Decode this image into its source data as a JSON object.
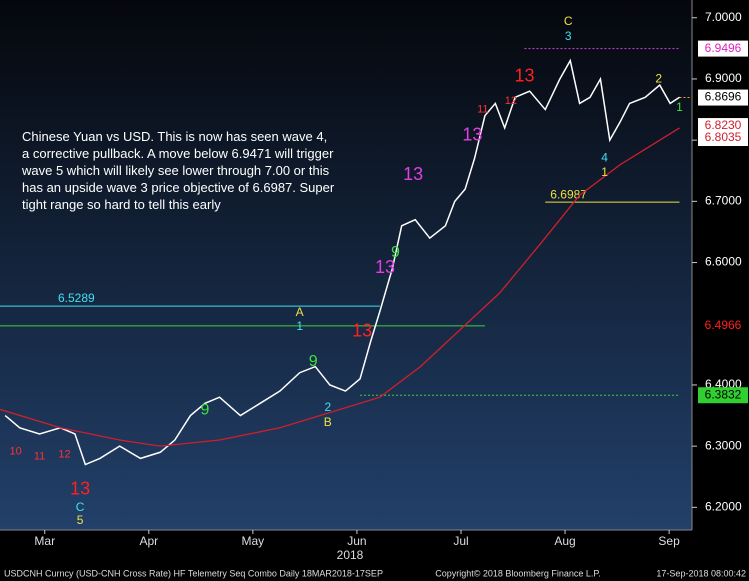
{
  "chart_data": {
    "type": "line",
    "note": "Chinese Yuan vs USD.  This is now has seen wave 4, a corrective pullback.  A move below 6.9471 will trigger wave 5 which will likely see lower through 7.00 or this has an upside wave 3 price objective of 6.6987.  Super tight range so hard to tell this early",
    "x_label": "2018",
    "xlim": [
      -0.43,
      6.22
    ],
    "xticks": [
      {
        "value": 0,
        "label": "Mar"
      },
      {
        "value": 1,
        "label": "Apr"
      },
      {
        "value": 2,
        "label": "May"
      },
      {
        "value": 3,
        "label": "Jun"
      },
      {
        "value": 4,
        "label": "Jul"
      },
      {
        "value": 5,
        "label": "Aug"
      },
      {
        "value": 6,
        "label": "Sep"
      }
    ],
    "ylim": [
      6.163,
      7.029
    ],
    "yticks": [
      {
        "value": 6.2,
        "label": "6.2000"
      },
      {
        "value": 6.3,
        "label": "6.3000"
      },
      {
        "value": 6.4,
        "label": "6.4000"
      },
      {
        "value": 6.6,
        "label": "6.6000"
      },
      {
        "value": 6.7,
        "label": "6.7000"
      },
      {
        "value": 6.8,
        "label": "6.8000"
      },
      {
        "value": 6.9,
        "label": "6.9000"
      },
      {
        "value": 7.0,
        "label": "7.0000"
      }
    ],
    "series": [
      {
        "name": "USDCNH",
        "color": "#ffffff",
        "x": [
          -0.38,
          -0.24,
          -0.05,
          0.15,
          0.29,
          0.39,
          0.53,
          0.72,
          0.92,
          1.11,
          1.25,
          1.4,
          1.54,
          1.68,
          1.88,
          2.07,
          2.26,
          2.45,
          2.6,
          2.74,
          2.89,
          3.03,
          3.13,
          3.22,
          3.34,
          3.43,
          3.56,
          3.7,
          3.85,
          3.94,
          4.04,
          4.13,
          4.23,
          4.33,
          4.42,
          4.52,
          4.66,
          4.81,
          4.95,
          5.05,
          5.14,
          5.24,
          5.34,
          5.43,
          5.53,
          5.62,
          5.77,
          5.91,
          6.01,
          6.1
        ],
        "values": [
          6.35,
          6.33,
          6.32,
          6.33,
          6.32,
          6.27,
          6.28,
          6.3,
          6.28,
          6.29,
          6.31,
          6.35,
          6.37,
          6.38,
          6.35,
          6.37,
          6.39,
          6.42,
          6.43,
          6.4,
          6.39,
          6.41,
          6.47,
          6.52,
          6.59,
          6.66,
          6.67,
          6.64,
          6.66,
          6.7,
          6.72,
          6.77,
          6.84,
          6.86,
          6.82,
          6.87,
          6.88,
          6.85,
          6.9,
          6.93,
          6.86,
          6.87,
          6.9,
          6.8,
          6.83,
          6.86,
          6.87,
          6.89,
          6.86,
          6.87
        ]
      },
      {
        "name": "Moving Average",
        "color": "#d01f2c",
        "x": [
          -0.43,
          0.15,
          0.72,
          1.11,
          1.68,
          2.26,
          2.84,
          3.22,
          3.61,
          3.99,
          4.37,
          4.76,
          5.14,
          5.53,
          5.91,
          6.1
        ],
        "values": [
          6.36,
          6.33,
          6.31,
          6.3,
          6.31,
          6.33,
          6.36,
          6.38,
          6.43,
          6.49,
          6.55,
          6.63,
          6.71,
          6.76,
          6.8,
          6.82
        ]
      }
    ],
    "levels": [
      {
        "value": 6.9496,
        "color": "#e040e0",
        "from": 4.61,
        "to": 6.1
      },
      {
        "value": 6.6987,
        "color": "#f0e040",
        "from": 4.81,
        "to": 6.1,
        "label": "6.6987"
      },
      {
        "value": 6.5289,
        "color": "#40e0f0",
        "from": -0.43,
        "to": 3.22,
        "label": "6.5289"
      },
      {
        "value": 6.4966,
        "color": "#40d040",
        "from": -0.43,
        "to": 4.23
      },
      {
        "value": 6.3832,
        "color": "#40d040",
        "from": 3.03,
        "to": 6.1
      },
      {
        "value": 6.8696,
        "color": "#f0a030",
        "from": 6.1,
        "to": 6.22
      }
    ],
    "price_tags": [
      {
        "value": 6.9496,
        "label": "6.9496",
        "bg": "#ffffff",
        "fg": "#e020c0"
      },
      {
        "value": 6.8696,
        "label": "6.8696",
        "bg": "#ffffff",
        "fg": "#000000"
      },
      {
        "value": 6.823,
        "label": "6.8230",
        "bg": "#ffffff",
        "fg": "#d01f2c"
      },
      {
        "value": 6.8035,
        "label": "6.8035",
        "bg": "#ffffff",
        "fg": "#d01f2c"
      },
      {
        "value": 6.4966,
        "label": "6.4966",
        "bg": "#000000",
        "fg": "#ff2020"
      },
      {
        "value": 6.3832,
        "label": "6.3832",
        "bg": "#30d030",
        "fg": "#000000"
      }
    ],
    "annotations": [
      {
        "text": "13",
        "x": 0.34,
        "y": 6.229,
        "color": "#ff2020",
        "size": 18
      },
      {
        "text": "C",
        "x": 0.34,
        "y": 6.199,
        "color": "#40e0f0",
        "size": 12
      },
      {
        "text": "5",
        "x": 0.34,
        "y": 6.178,
        "color": "#f0e040",
        "size": 12
      },
      {
        "text": "10",
        "x": -0.28,
        "y": 6.291,
        "color": "#ff3030",
        "size": 11
      },
      {
        "text": "11",
        "x": -0.05,
        "y": 6.283,
        "color": "#ff3030",
        "size": 11
      },
      {
        "text": "12",
        "x": 0.19,
        "y": 6.286,
        "color": "#ff3030",
        "size": 11
      },
      {
        "text": "9",
        "x": 1.54,
        "y": 6.359,
        "color": "#40e040",
        "size": 16
      },
      {
        "text": "A",
        "x": 2.45,
        "y": 6.518,
        "color": "#f0e040",
        "size": 12
      },
      {
        "text": "1",
        "x": 2.45,
        "y": 6.495,
        "color": "#40e0f0",
        "size": 12
      },
      {
        "text": "9",
        "x": 2.58,
        "y": 6.438,
        "color": "#40e040",
        "size": 16
      },
      {
        "text": "2",
        "x": 2.72,
        "y": 6.363,
        "color": "#40e0f0",
        "size": 12
      },
      {
        "text": "B",
        "x": 2.72,
        "y": 6.338,
        "color": "#f0e040",
        "size": 12
      },
      {
        "text": "13",
        "x": 3.05,
        "y": 6.487,
        "color": "#ff2020",
        "size": 18
      },
      {
        "text": "13",
        "x": 3.27,
        "y": 6.591,
        "color": "#e040e0",
        "size": 18
      },
      {
        "text": "9",
        "x": 3.37,
        "y": 6.616,
        "color": "#40e040",
        "size": 16
      },
      {
        "text": "13",
        "x": 3.54,
        "y": 6.743,
        "color": "#e040e0",
        "size": 18
      },
      {
        "text": "13",
        "x": 4.11,
        "y": 6.807,
        "color": "#e040e0",
        "size": 18
      },
      {
        "text": "11",
        "x": 4.21,
        "y": 6.85,
        "color": "#ff3030",
        "size": 11
      },
      {
        "text": "12",
        "x": 4.48,
        "y": 6.864,
        "color": "#ff3030",
        "size": 11
      },
      {
        "text": "13",
        "x": 4.61,
        "y": 6.904,
        "color": "#ff2020",
        "size": 18
      },
      {
        "text": "C",
        "x": 5.03,
        "y": 6.993,
        "color": "#f0e040",
        "size": 12
      },
      {
        "text": "3",
        "x": 5.03,
        "y": 6.969,
        "color": "#40e0f0",
        "size": 12
      },
      {
        "text": "4",
        "x": 5.38,
        "y": 6.77,
        "color": "#40e0f0",
        "size": 12
      },
      {
        "text": "1",
        "x": 5.38,
        "y": 6.747,
        "color": "#f0e040",
        "size": 12
      },
      {
        "text": "2",
        "x": 5.9,
        "y": 6.899,
        "color": "#f0e040",
        "size": 12
      },
      {
        "text": "1",
        "x": 6.1,
        "y": 6.853,
        "color": "#40e040",
        "size": 12
      }
    ],
    "footer_left": "USDCNH Curncy (USD-CNH Cross Rate) HF Telemetry Seq Combo  Daily 18MAR2018-17SEP",
    "footer_mid": "Copyright© 2018 Bloomberg Finance L.P.",
    "footer_right": "17-Sep-2018 08:00:42"
  }
}
